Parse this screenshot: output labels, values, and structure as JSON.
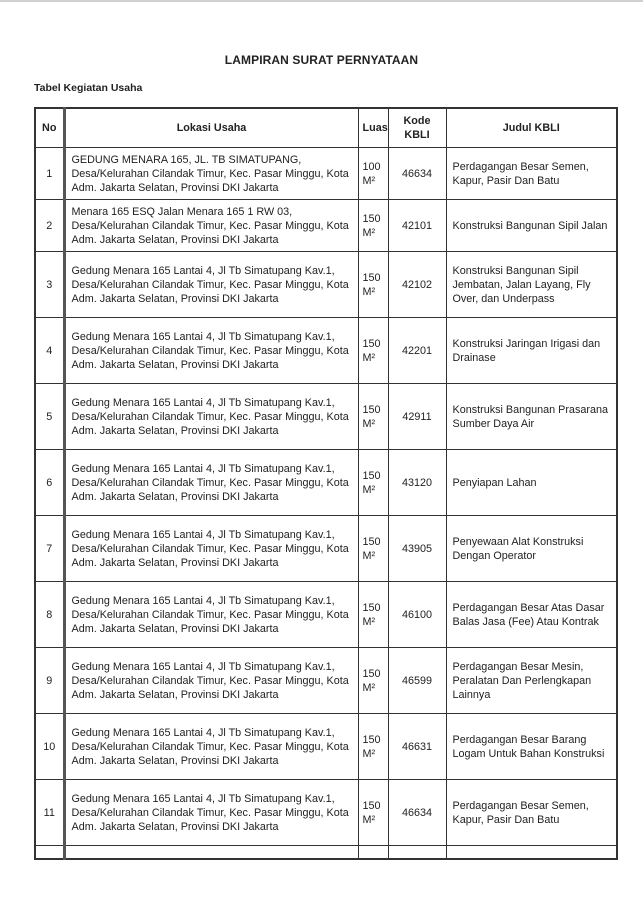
{
  "document": {
    "title": "LAMPIRAN SURAT PERNYATAAN",
    "subtitle": "Tabel Kegiatan Usaha"
  },
  "table": {
    "headers": [
      "No",
      "Lokasi Usaha",
      "Luas",
      "Kode KBLI",
      "Judul KBLI"
    ],
    "rows": [
      {
        "no": "1",
        "lokasi": "GEDUNG MENARA 165, JL. TB SIMATUPANG, Desa/Kelurahan Cilandak Timur, Kec. Pasar Minggu, Kota Adm. Jakarta Selatan, Provinsi DKI Jakarta",
        "luas": "100",
        "unit": "M²",
        "kode": "46634",
        "judul": "Perdagangan Besar Semen, Kapur, Pasir Dan Batu"
      },
      {
        "no": "2",
        "lokasi": "Menara 165 ESQ Jalan Menara 165 1 RW 03, Desa/Kelurahan Cilandak Timur, Kec. Pasar Minggu, Kota Adm. Jakarta Selatan, Provinsi DKI Jakarta",
        "luas": "150",
        "unit": "M²",
        "kode": "42101",
        "judul": "Konstruksi Bangunan Sipil Jalan"
      },
      {
        "no": "3",
        "lokasi": "Gedung Menara 165 Lantai 4, Jl Tb Simatupang Kav.1, Desa/Kelurahan Cilandak Timur, Kec. Pasar Minggu, Kota Adm. Jakarta Selatan, Provinsi DKI Jakarta",
        "luas": "150",
        "unit": "M²",
        "kode": "42102",
        "judul": "Konstruksi Bangunan Sipil Jembatan, Jalan Layang, Fly Over, dan Underpass"
      },
      {
        "no": "4",
        "lokasi": "Gedung Menara 165 Lantai 4, Jl Tb Simatupang Kav.1, Desa/Kelurahan Cilandak Timur, Kec. Pasar Minggu, Kota Adm. Jakarta Selatan, Provinsi DKI Jakarta",
        "luas": "150",
        "unit": "M²",
        "kode": "42201",
        "judul": "Konstruksi Jaringan Irigasi dan Drainase"
      },
      {
        "no": "5",
        "lokasi": "Gedung Menara 165 Lantai 4, Jl Tb Simatupang Kav.1, Desa/Kelurahan Cilandak Timur, Kec. Pasar Minggu, Kota Adm. Jakarta Selatan, Provinsi DKI Jakarta",
        "luas": "150",
        "unit": "M²",
        "kode": "42911",
        "judul": "Konstruksi Bangunan Prasarana Sumber Daya Air"
      },
      {
        "no": "6",
        "lokasi": "Gedung Menara 165 Lantai 4, Jl Tb Simatupang Kav.1, Desa/Kelurahan Cilandak Timur, Kec. Pasar Minggu, Kota Adm. Jakarta Selatan, Provinsi DKI Jakarta",
        "luas": "150",
        "unit": "M²",
        "kode": "43120",
        "judul": "Penyiapan Lahan"
      },
      {
        "no": "7",
        "lokasi": "Gedung Menara 165 Lantai 4, Jl Tb Simatupang Kav.1, Desa/Kelurahan Cilandak Timur, Kec. Pasar Minggu, Kota Adm. Jakarta Selatan, Provinsi DKI Jakarta",
        "luas": "150",
        "unit": "M²",
        "kode": "43905",
        "judul": "Penyewaan Alat Konstruksi Dengan Operator"
      },
      {
        "no": "8",
        "lokasi": "Gedung Menara 165 Lantai 4, Jl Tb Simatupang Kav.1, Desa/Kelurahan Cilandak Timur, Kec. Pasar Minggu, Kota Adm. Jakarta Selatan, Provinsi DKI Jakarta",
        "luas": "150",
        "unit": "M²",
        "kode": "46100",
        "judul": "Perdagangan Besar Atas Dasar Balas Jasa (Fee) Atau Kontrak"
      },
      {
        "no": "9",
        "lokasi": "Gedung Menara 165 Lantai 4, Jl Tb Simatupang Kav.1, Desa/Kelurahan Cilandak Timur, Kec. Pasar Minggu, Kota Adm. Jakarta Selatan, Provinsi DKI Jakarta",
        "luas": "150",
        "unit": "M²",
        "kode": "46599",
        "judul": "Perdagangan Besar Mesin, Peralatan Dan Perlengkapan Lainnya"
      },
      {
        "no": "10",
        "lokasi": "Gedung Menara 165 Lantai 4, Jl Tb Simatupang Kav.1, Desa/Kelurahan Cilandak Timur, Kec. Pasar Minggu, Kota Adm. Jakarta Selatan, Provinsi DKI Jakarta",
        "luas": "150",
        "unit": "M²",
        "kode": "46631",
        "judul": "Perdagangan Besar Barang Logam Untuk Bahan Konstruksi"
      },
      {
        "no": "11",
        "lokasi": "Gedung Menara 165 Lantai 4, Jl Tb Simatupang Kav.1, Desa/Kelurahan Cilandak Timur, Kec. Pasar Minggu, Kota Adm. Jakarta Selatan, Provinsi DKI Jakarta",
        "luas": "150",
        "unit": "M²",
        "kode": "46634",
        "judul": "Perdagangan Besar Semen, Kapur, Pasir Dan Batu"
      }
    ]
  }
}
